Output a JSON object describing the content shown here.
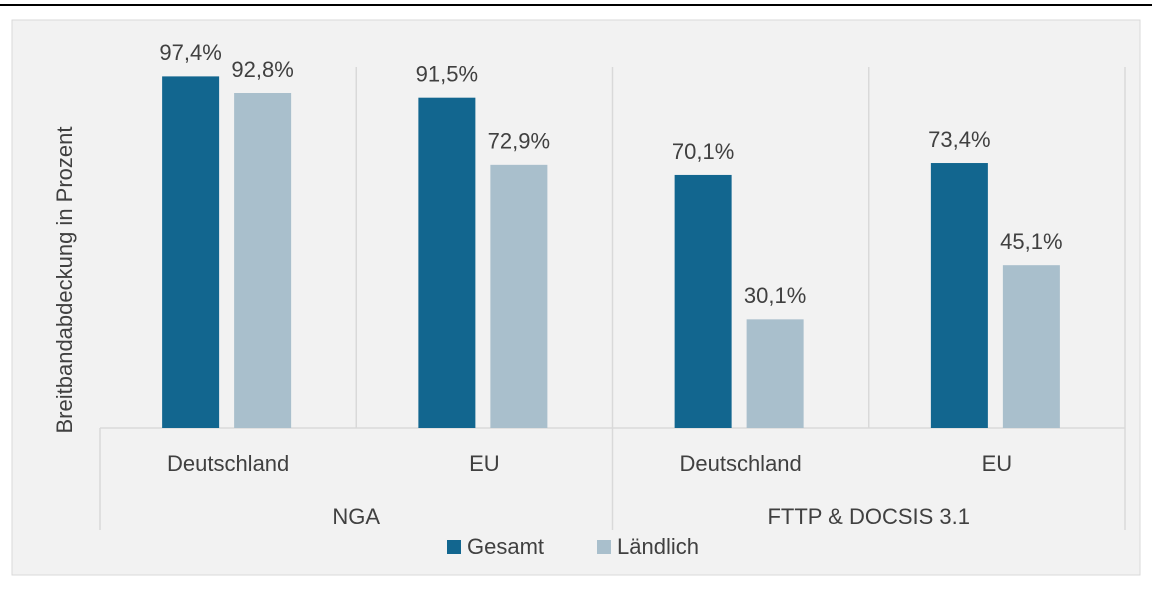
{
  "chart_data": {
    "type": "bar",
    "y_label": "Breitbandabdeckung in Prozent",
    "categories": [
      "Deutschland",
      "EU",
      "Deutschland",
      "EU"
    ],
    "groups": [
      "NGA",
      "FTTP & DOCSIS 3.1"
    ],
    "series": [
      {
        "name": "Gesamt",
        "color": "#12668f",
        "values": [
          97.4,
          91.5,
          70.1,
          73.4
        ],
        "value_labels": [
          "97,4%",
          "91,5%",
          "70,1%",
          "73,4%"
        ]
      },
      {
        "name": "Ländlich",
        "color": "#a9bfcc",
        "values": [
          92.8,
          72.9,
          30.1,
          45.1
        ],
        "value_labels": [
          "92,8%",
          "72,9%",
          "30,1%",
          "45,1%"
        ]
      }
    ],
    "ylim": [
      0,
      100
    ],
    "legend": "bottom"
  }
}
